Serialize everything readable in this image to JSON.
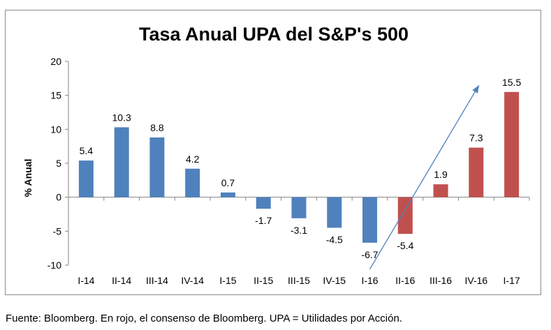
{
  "chart_data": {
    "type": "bar",
    "title": "Tasa Anual UPA  del S&P's 500",
    "xlabel": "",
    "ylabel": "% Anual",
    "categories": [
      "I-14",
      "II-14",
      "III-14",
      "IV-14",
      "I-15",
      "II-15",
      "III-15",
      "IV-15",
      "I-16",
      "II-16",
      "III-16",
      "IV-16",
      "I-17"
    ],
    "values": [
      5.4,
      10.3,
      8.8,
      4.2,
      0.7,
      -1.7,
      -3.1,
      -4.5,
      -6.7,
      -5.4,
      1.9,
      7.3,
      15.5
    ],
    "data_labels": [
      "5.4",
      "10.3",
      "8.8",
      "4.2",
      "0.7",
      "-1.7",
      "-3.1",
      "-4.5",
      "-6.7",
      "-5.4",
      "1.9",
      "7.3",
      "15.5"
    ],
    "bar_colors": [
      "#4f81bd",
      "#4f81bd",
      "#4f81bd",
      "#4f81bd",
      "#4f81bd",
      "#4f81bd",
      "#4f81bd",
      "#4f81bd",
      "#4f81bd",
      "#c0504d",
      "#c0504d",
      "#c0504d",
      "#c0504d"
    ],
    "ylim": [
      -10,
      20
    ],
    "yticks": [
      20,
      15,
      10,
      5,
      0,
      -5,
      -10
    ],
    "ytick_labels": [
      "20",
      "15",
      "10",
      "5",
      "0",
      "-5",
      "-10"
    ],
    "grid": false,
    "legend": "none",
    "colors": {
      "actual": "#4f81bd",
      "consensus": "#c0504d",
      "trend_arrow": "#4f81bd"
    },
    "annotations": [
      {
        "type": "trend-arrow",
        "from": {
          "x": "I-16",
          "y": -10.6
        },
        "to": {
          "x": "IV-16",
          "y": 16.5
        }
      }
    ]
  },
  "footnote": "Fuente: Bloomberg. En rojo, el consenso de Bloomberg. UPA = Utilidades por Acción."
}
